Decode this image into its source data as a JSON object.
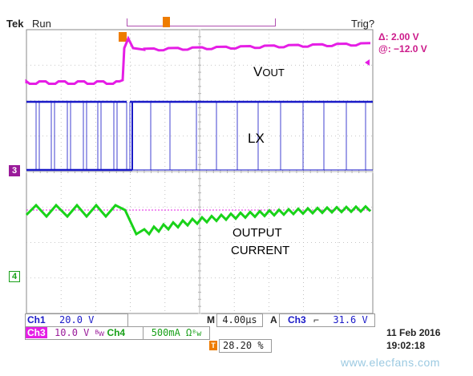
{
  "header": {
    "brand": "Tek",
    "state": "Run",
    "trigger_status": "Trig?"
  },
  "cursor_readout": {
    "delta": "Δ:   2.00 V",
    "at": "@: −12.0 V"
  },
  "waveform_labels": {
    "vout_main": "V",
    "vout_sub": "OUT",
    "lx": "LX",
    "current_line1": "OUTPUT",
    "current_line2": "CURRENT"
  },
  "ground_markers": {
    "ch3": "3",
    "ch4": "4"
  },
  "channel_settings": {
    "ch1": {
      "name": "Ch1",
      "scale": "20.0 V"
    },
    "ch3": {
      "name": "Ch3",
      "scale": "10.0 V",
      "coupling": "ᴮw"
    },
    "ch4": {
      "name": "Ch4",
      "scale": "500mA Ω",
      "coupling": "ᴮw"
    }
  },
  "timebase": {
    "label": "M",
    "value": "4.00µs"
  },
  "acquisition": {
    "label": "A",
    "source": "Ch3",
    "slope": "⌐",
    "level": "31.6 V"
  },
  "trigger_position": {
    "marker": "T",
    "value": "28.20 %"
  },
  "datetime": {
    "date": "11 Feb  2016",
    "time": "19:02:18"
  },
  "watermark": "www.elecfans.com",
  "colors": {
    "ch1": "#1a1ac8",
    "ch3": "#e51ee5",
    "ch4": "#19d219",
    "marker_trigger": "#ee7c00",
    "grid": "#b4b4b4"
  }
}
